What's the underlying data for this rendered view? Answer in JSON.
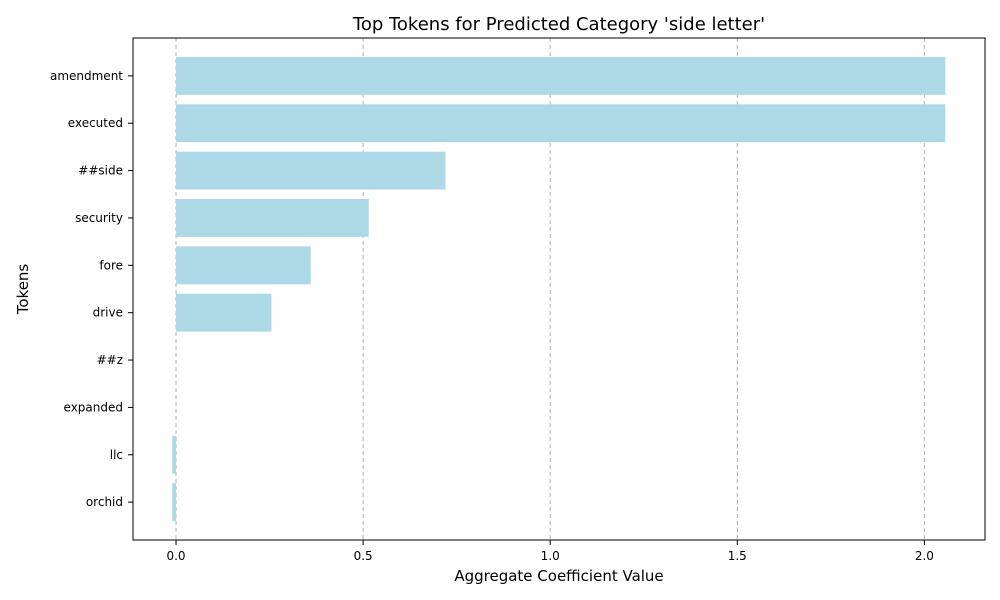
{
  "chart_data": {
    "type": "bar",
    "orientation": "horizontal",
    "title": "Top Tokens for Predicted Category 'side letter'",
    "xlabel": "Aggregate Coefficient Value",
    "ylabel": "Tokens",
    "categories": [
      "amendment",
      "executed",
      "##side",
      "security",
      "fore",
      "drive",
      "##z",
      "expanded",
      "llc",
      "orchid"
    ],
    "values": [
      2.056,
      2.056,
      0.72,
      0.515,
      0.36,
      0.255,
      0.0,
      0.0,
      -0.01,
      -0.01
    ],
    "xlim": [
      -0.115,
      2.162
    ],
    "xticks": [
      0.0,
      0.5,
      1.0,
      1.5,
      2.0
    ],
    "xtick_labels": [
      "0.0",
      "0.5",
      "1.0",
      "1.5",
      "2.0"
    ],
    "grid": "x-dashed",
    "bar_color": "#add8e6"
  }
}
